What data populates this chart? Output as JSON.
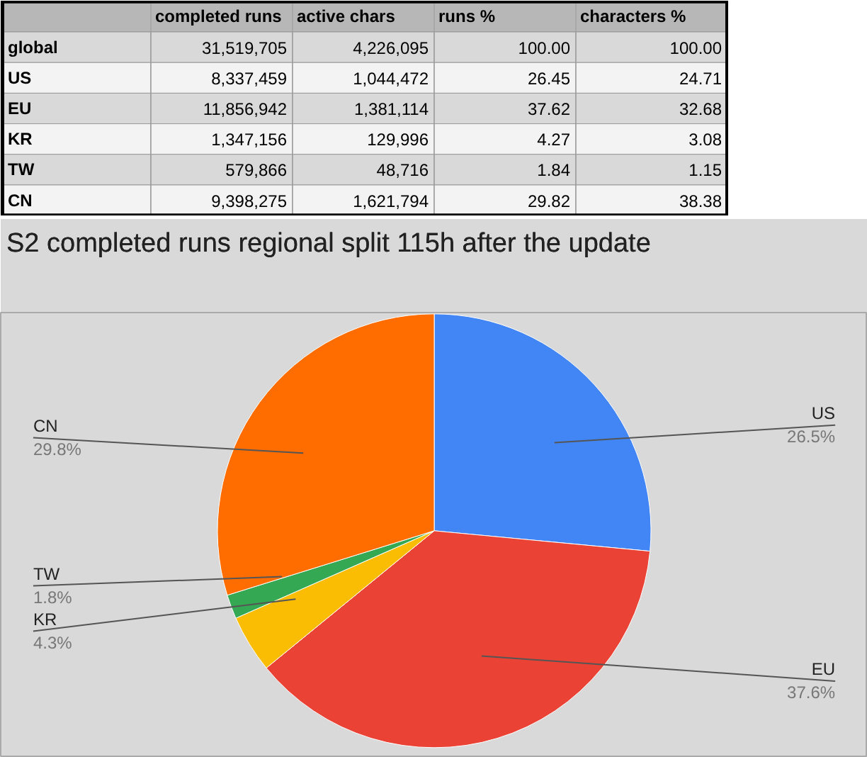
{
  "chart_data": [
    {
      "type": "other",
      "categories": [
        "global",
        "US",
        "EU",
        "KR",
        "TW",
        "CN"
      ],
      "data_labels": true,
      "series": [
        {
          "name": "completed runs",
          "colors": [
            "#d9d9d9",
            "#f3f3f3",
            "#d9d9d9",
            "#f3f3f3",
            "#d9d9d9",
            "#f3f3f3"
          ],
          "values": [
            31519705,
            8337459,
            11856942,
            1347156,
            579866,
            9398275
          ],
          "value_labels": [
            "31,519,705",
            "8,337,459",
            "11,856,942",
            "1,347,156",
            "579,866",
            "9,398,275"
          ]
        },
        {
          "name": "active chars",
          "colors": [
            "#d9d9d9",
            "#f3f3f3",
            "#d9d9d9",
            "#f3f3f3",
            "#d9d9d9",
            "#f3f3f3"
          ],
          "values": [
            4226095,
            1044472,
            1381114,
            129996,
            48716,
            1621794
          ],
          "value_labels": [
            "4,226,095",
            "1,044,472",
            "1,381,114",
            "129,996",
            "48,716",
            "1,621,794"
          ]
        },
        {
          "name": "runs %",
          "colors": [
            "#d9d9d9",
            "#f3f3f3",
            "#d9d9d9",
            "#f3f3f3",
            "#d9d9d9",
            "#f3f3f3"
          ],
          "values": [
            100.0,
            26.45,
            37.62,
            4.27,
            1.84,
            29.82
          ],
          "value_labels": [
            "100.00",
            "26.45",
            "37.62",
            "4.27",
            "1.84",
            "29.82"
          ]
        },
        {
          "name": "characters %",
          "colors": [
            "#d9d9d9",
            "#f3f3f3",
            "#d9d9d9",
            "#f3f3f3",
            "#d9d9d9",
            "#f3f3f3"
          ],
          "values": [
            100.0,
            24.71,
            32.68,
            3.08,
            1.15,
            38.38
          ],
          "value_labels": [
            "100.00",
            "24.71",
            "32.68",
            "3.08",
            "1.15",
            "38.38"
          ]
        }
      ]
    },
    {
      "type": "pie",
      "title": "S2 completed runs regional split 115h after the update",
      "categories": [
        "US",
        "EU",
        "KR",
        "TW",
        "CN"
      ],
      "values": [
        26.5,
        37.6,
        4.3,
        1.8,
        29.8
      ],
      "value_labels": [
        "26.5%",
        "37.6%",
        "4.3%",
        "1.8%",
        "29.8%"
      ],
      "colors": [
        "#4285f4",
        "#ea4335",
        "#fbbc04",
        "#34a853",
        "#ff6d01"
      ]
    }
  ]
}
